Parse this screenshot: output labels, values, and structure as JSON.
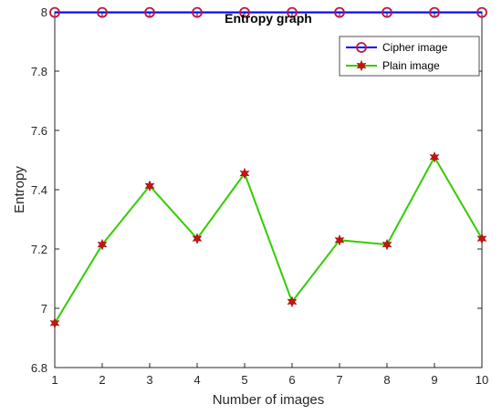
{
  "chart_data": {
    "type": "line",
    "title": "Entropy graph",
    "xlabel": "Number of images",
    "ylabel": "Entropy",
    "x": [
      1,
      2,
      3,
      4,
      5,
      6,
      7,
      8,
      9,
      10
    ],
    "xlim": [
      1,
      10
    ],
    "ylim": [
      6.8,
      8
    ],
    "xticks": [
      "1",
      "2",
      "3",
      "4",
      "5",
      "6",
      "7",
      "8",
      "9",
      "10"
    ],
    "yticks": [
      "6.8",
      "7",
      "7.2",
      "7.4",
      "7.6",
      "7.8",
      "8"
    ],
    "grid": false,
    "legend_position": "top-right",
    "series": [
      {
        "name": "Cipher image",
        "values": [
          7.998,
          7.998,
          7.998,
          7.998,
          7.998,
          7.998,
          7.998,
          7.998,
          7.998,
          7.998
        ],
        "line_color": "#0000ff",
        "marker": "circle",
        "marker_color": "#c0143c"
      },
      {
        "name": "Plain image",
        "values": [
          6.95,
          7.215,
          7.413,
          7.235,
          7.455,
          7.022,
          7.23,
          7.215,
          7.51,
          7.235
        ],
        "line_color": "#33cc00",
        "marker": "star",
        "marker_color": "#cc1111"
      }
    ]
  }
}
